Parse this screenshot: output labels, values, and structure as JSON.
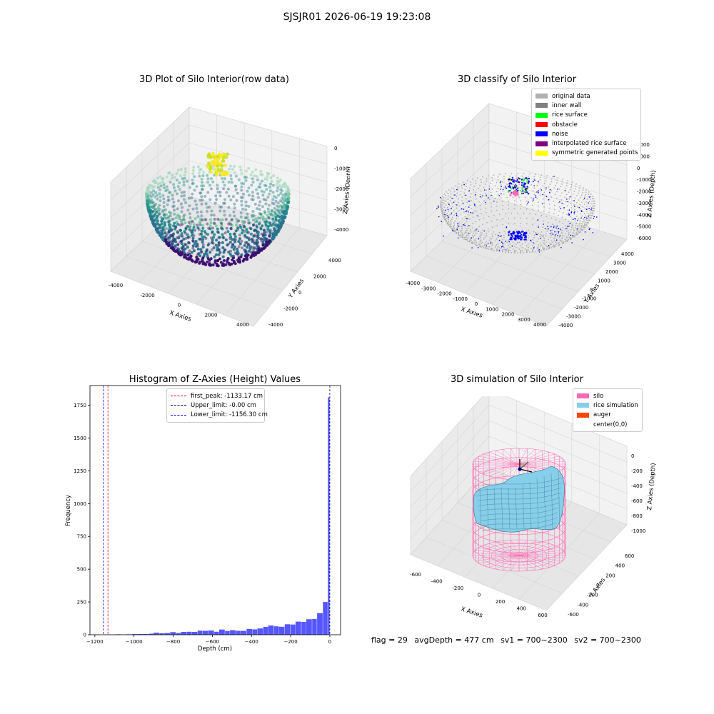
{
  "figure": {
    "suptitle": "SJSJR01 2026-06-19 19:23:08"
  },
  "panels": {
    "raw": {
      "title": "3D Plot of Silo Interior(row data)",
      "xlabel": "X Axies",
      "ylabel": "Y Axies",
      "zlabel": "Z Axies (Depth)",
      "xticks": [
        "-4000",
        "-2000",
        "0",
        "2000",
        "4000"
      ],
      "yticks": [
        "-4000",
        "-2000",
        "0",
        "2000",
        "4000"
      ],
      "zticks": [
        "-4000",
        "-3000",
        "-2000",
        "-1000",
        "0"
      ],
      "colors": {
        "deep": "#3b0f70",
        "mid": "#21918c",
        "high": "#5ec962",
        "top": "#fde725"
      }
    },
    "classify": {
      "title": "3D classify of Silo Interior",
      "xlabel": "X Axies",
      "ylabel": "Y Axies",
      "zlabel": "Z Axies (Depth)",
      "xticks": [
        "-4000",
        "-3000",
        "-2000",
        "-1000",
        "0",
        "1000",
        "2000",
        "3000",
        "4000"
      ],
      "yticks": [
        "-4000",
        "-3000",
        "-2000",
        "-1000",
        "0",
        "1000",
        "2000",
        "3000",
        "4000"
      ],
      "zticks": [
        "-6000",
        "-5000",
        "-4000",
        "-3000",
        "-2000",
        "-1000",
        "0",
        "1000",
        "2000"
      ],
      "legend": [
        {
          "label": "original data",
          "color": "#b0b0b0"
        },
        {
          "label": "inner wall",
          "color": "#808080"
        },
        {
          "label": "rice surface",
          "color": "#00ff00"
        },
        {
          "label": "obstacle",
          "color": "#ff0000"
        },
        {
          "label": "noise",
          "color": "#0000ff"
        },
        {
          "label": "interpolated rice surface",
          "color": "#800080"
        },
        {
          "label": "symmetric generated points",
          "color": "#ffff00"
        }
      ]
    },
    "simulation": {
      "title": "3D simulation of Silo Interior",
      "xlabel": "X Axies",
      "ylabel": "Y Axies",
      "zlabel": "Z Axies (Depth)",
      "xticks": [
        "-600",
        "-400",
        "-200",
        "0",
        "200",
        "400",
        "600"
      ],
      "yticks": [
        "-600",
        "-400",
        "-200",
        "0",
        "200",
        "400",
        "600"
      ],
      "zticks": [
        "-1000",
        "-800",
        "-600",
        "-400",
        "-200",
        "0"
      ],
      "legend": [
        {
          "label": "silo",
          "color": "#ff69b4"
        },
        {
          "label": "rice simulation",
          "color": "#87ceeb"
        },
        {
          "label": "auger",
          "color": "#ff4500"
        },
        {
          "label": "center(0,0)",
          "color": "#ffffff"
        }
      ]
    }
  },
  "chart_data": {
    "type": "bar",
    "title": "Histogram of Z-Axies (Height) Values",
    "xlabel": "Depth (cm)",
    "ylabel": "Frequency",
    "xlim": [
      -1225,
      55
    ],
    "ylim": [
      0,
      1900
    ],
    "xticks": [
      -1200,
      -1000,
      -800,
      -600,
      -400,
      -200,
      0
    ],
    "yticks": [
      0,
      250,
      500,
      750,
      1000,
      1250,
      1500,
      1750
    ],
    "bar_color": "#4d4dff",
    "bins": [
      {
        "x0": -1095,
        "x1": -1065,
        "value": 3
      },
      {
        "x0": -1065,
        "x1": -1040,
        "value": 1
      },
      {
        "x0": -1040,
        "x1": -1010,
        "value": 3
      },
      {
        "x0": -1010,
        "x1": -980,
        "value": 5
      },
      {
        "x0": -980,
        "x1": -955,
        "value": 6
      },
      {
        "x0": -955,
        "x1": -925,
        "value": 6
      },
      {
        "x0": -925,
        "x1": -900,
        "value": 8
      },
      {
        "x0": -900,
        "x1": -870,
        "value": 16
      },
      {
        "x0": -870,
        "x1": -845,
        "value": 11
      },
      {
        "x0": -845,
        "x1": -815,
        "value": 13
      },
      {
        "x0": -815,
        "x1": -785,
        "value": 20
      },
      {
        "x0": -785,
        "x1": -760,
        "value": 13
      },
      {
        "x0": -760,
        "x1": -730,
        "value": 22
      },
      {
        "x0": -730,
        "x1": -705,
        "value": 23
      },
      {
        "x0": -705,
        "x1": -675,
        "value": 22
      },
      {
        "x0": -675,
        "x1": -650,
        "value": 31
      },
      {
        "x0": -650,
        "x1": -620,
        "value": 30
      },
      {
        "x0": -620,
        "x1": -590,
        "value": 32
      },
      {
        "x0": -590,
        "x1": -565,
        "value": 23
      },
      {
        "x0": -565,
        "x1": -535,
        "value": 40
      },
      {
        "x0": -535,
        "x1": -510,
        "value": 29
      },
      {
        "x0": -510,
        "x1": -480,
        "value": 35
      },
      {
        "x0": -480,
        "x1": -455,
        "value": 30
      },
      {
        "x0": -455,
        "x1": -425,
        "value": 30
      },
      {
        "x0": -425,
        "x1": -395,
        "value": 44
      },
      {
        "x0": -395,
        "x1": -370,
        "value": 41
      },
      {
        "x0": -370,
        "x1": -340,
        "value": 48
      },
      {
        "x0": -340,
        "x1": -315,
        "value": 60
      },
      {
        "x0": -315,
        "x1": -285,
        "value": 70
      },
      {
        "x0": -285,
        "x1": -260,
        "value": 64
      },
      {
        "x0": -260,
        "x1": -230,
        "value": 61
      },
      {
        "x0": -230,
        "x1": -200,
        "value": 80
      },
      {
        "x0": -200,
        "x1": -175,
        "value": 78
      },
      {
        "x0": -175,
        "x1": -145,
        "value": 100
      },
      {
        "x0": -145,
        "x1": -120,
        "value": 98
      },
      {
        "x0": -120,
        "x1": -90,
        "value": 118
      },
      {
        "x0": -90,
        "x1": -65,
        "value": 120
      },
      {
        "x0": -65,
        "x1": -35,
        "value": 165
      },
      {
        "x0": -35,
        "x1": -10,
        "value": 250
      },
      {
        "x0": -10,
        "x1": 0,
        "value": 1810
      }
    ],
    "lines": [
      {
        "label": "first_peak: -1133.17 cm",
        "x": -1133.17,
        "color": "#ff0000"
      },
      {
        "label": "Upper_limit: -0.00 cm",
        "x": 0,
        "color": "#000080"
      },
      {
        "label": "Lower_limit: -1156.30 cm",
        "x": -1156.3,
        "color": "#0000ff"
      }
    ]
  },
  "status": {
    "flag": "flag = 29",
    "avg_depth": "avgDepth = 477 cm",
    "sv1": "sv1 = 700~2300",
    "sv2": "sv2 = 700~2300"
  }
}
